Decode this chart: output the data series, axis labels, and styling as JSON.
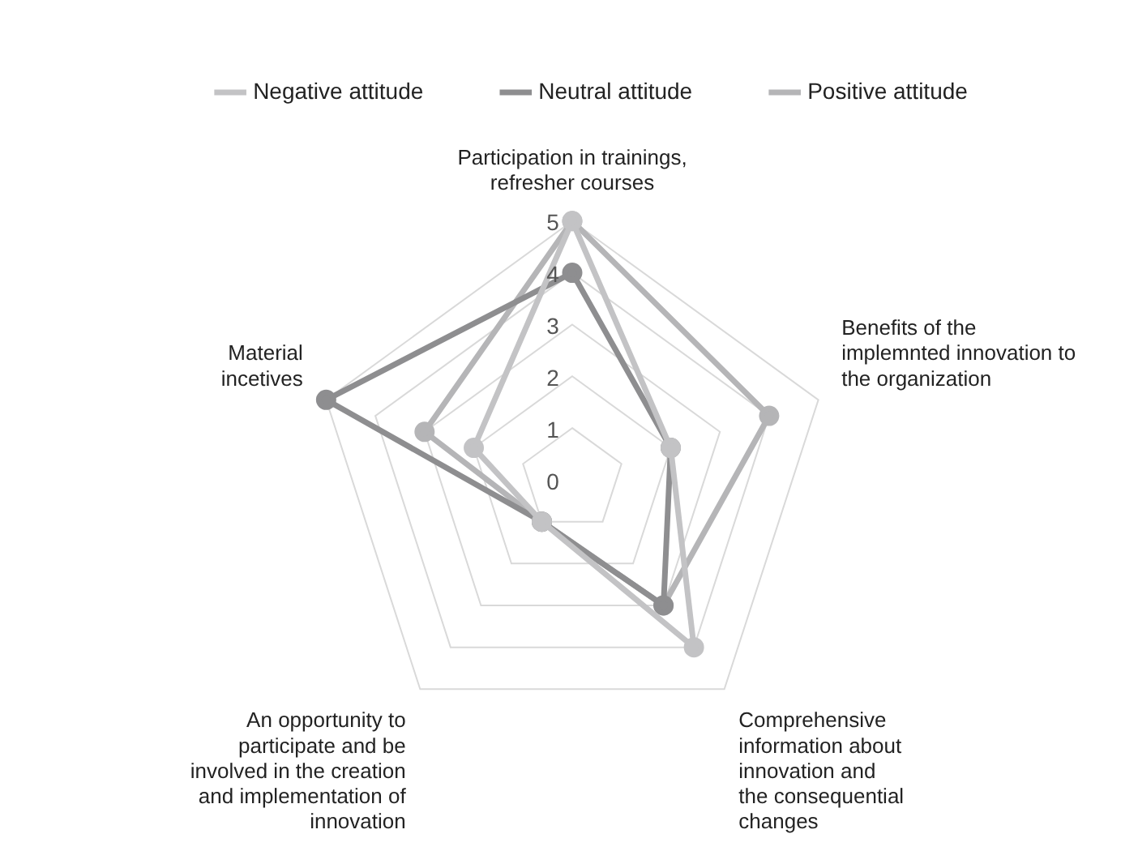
{
  "chart_data": {
    "type": "radar",
    "categories": [
      "Participation in trainings,\nrefresher courses",
      "Benefits of the\nimplemnted innovation to\nthe organization",
      "Comprehensive\ninformation about\ninnovation and\nthe consequential\nchanges",
      "An opportunity to\nparticipate and be\ninvolved in the creation\nand implementation of\ninnovation",
      "Material\nincetives"
    ],
    "series": [
      {
        "name": "Negative attitude",
        "color": "#c3c3c5",
        "values": [
          5,
          2,
          4,
          1,
          2
        ]
      },
      {
        "name": "Neutral attitude",
        "color": "#8e8e90",
        "values": [
          4,
          2,
          3,
          1,
          5
        ]
      },
      {
        "name": "Positive attitude",
        "color": "#b5b5b7",
        "values": [
          5,
          4,
          3,
          1,
          3
        ]
      }
    ],
    "ylim": [
      0,
      5
    ],
    "yticks": [
      0,
      1,
      2,
      3,
      4,
      5
    ],
    "grid": true,
    "legend": "top",
    "marker": "circle"
  }
}
